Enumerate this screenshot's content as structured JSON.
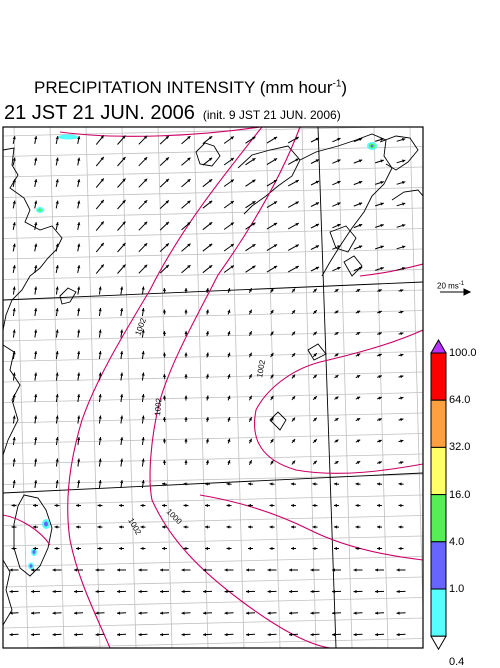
{
  "header": {
    "title": "PRECIPITATION INTENSITY (mm hour",
    "title_exp": "-1",
    "title_end": ")",
    "valid_time": "21 JST 21 JUN. 2006",
    "init_time": "(init. 9 JST 21 JUN. 2006)"
  },
  "vector_scale": {
    "label": "20 ms",
    "label_exp": "-1"
  },
  "colorbar": {
    "labels": [
      "100.0",
      "64.0",
      "32.0",
      "16.0",
      "4.0",
      "1.0",
      "0.4"
    ],
    "colors": [
      "#ff0000",
      "#ffa040",
      "#ffff66",
      "#55ee55",
      "#6666ff",
      "#55ffff"
    ],
    "over_color": "#bb33ff",
    "under_color": "#ffffff"
  },
  "isobars": {
    "labels": [
      "1002",
      "1002",
      "1002",
      "1002",
      "1000"
    ],
    "color": "#cc0066"
  }
}
